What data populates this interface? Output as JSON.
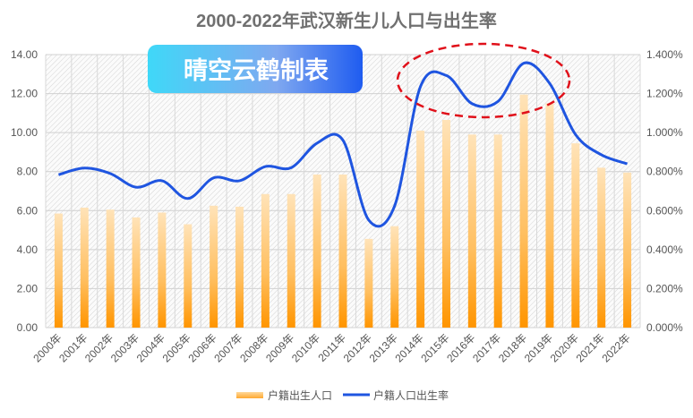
{
  "chart_data": {
    "type": "bar+line",
    "title": "2000-2022年武汉新生儿人口与出生率",
    "badge": "晴空云鹤制表",
    "categories": [
      "2000年",
      "2001年",
      "2002年",
      "2003年",
      "2004年",
      "2005年",
      "2006年",
      "2007年",
      "2008年",
      "2009年",
      "2010年",
      "2011年",
      "2012年",
      "2013年",
      "2014年",
      "2015年",
      "2016年",
      "2017年",
      "2018年",
      "2019年",
      "2020年",
      "2021年",
      "2022年"
    ],
    "series": [
      {
        "name": "户籍出生人口",
        "type": "bar",
        "axis": "left",
        "color": "#FF9900",
        "values": [
          5.85,
          6.15,
          6.05,
          5.65,
          5.9,
          5.3,
          6.25,
          6.2,
          6.85,
          6.85,
          7.85,
          7.85,
          4.55,
          5.2,
          10.1,
          10.65,
          9.9,
          9.9,
          11.95,
          11.5,
          9.45,
          8.2,
          7.95
        ]
      },
      {
        "name": "户籍人口出生率",
        "type": "line",
        "axis": "right",
        "color": "#1F55E0",
        "values": [
          0.784,
          0.818,
          0.79,
          0.72,
          0.753,
          0.662,
          0.768,
          0.753,
          0.826,
          0.82,
          0.946,
          0.961,
          0.551,
          0.624,
          1.236,
          1.293,
          1.148,
          1.16,
          1.356,
          1.252,
          0.99,
          0.886,
          0.84
        ]
      }
    ],
    "y_left": {
      "range": [
        0,
        14
      ],
      "ticks": [
        "0.00",
        "2.00",
        "4.00",
        "6.00",
        "8.00",
        "10.00",
        "12.00",
        "14.00"
      ]
    },
    "y_right": {
      "range": [
        0,
        1.4
      ],
      "unit": "%",
      "ticks": [
        "0.000%",
        "0.200%",
        "0.400%",
        "0.600%",
        "0.800%",
        "1.000%",
        "1.200%",
        "1.400%"
      ]
    },
    "grid": true,
    "legend": "bottom",
    "annotation": {
      "shape": "dashed-ellipse",
      "color": "#E0101A",
      "covers": [
        "2014年",
        "2019年"
      ]
    }
  }
}
